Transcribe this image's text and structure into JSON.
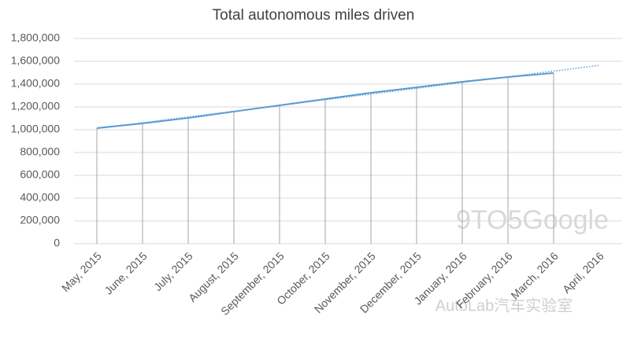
{
  "chart_data": {
    "type": "line",
    "title": "Total autonomous miles driven",
    "categories": [
      "May, 2015",
      "June, 2015",
      "July, 2015",
      "August, 2015",
      "September, 2015",
      "October, 2015",
      "November, 2015",
      "December, 2015",
      "January, 2016",
      "February, 2016",
      "March, 2016",
      "April, 2016"
    ],
    "series": [
      {
        "color": "#5b9bd5",
        "values": [
          1014000,
          1055000,
          1103000,
          1159000,
          1214000,
          1269000,
          1324000,
          1372000,
          1421000,
          1462000,
          1497000,
          null
        ]
      }
    ],
    "trendline": {
      "color": "#5b9bd5",
      "style": "dotted",
      "values": [
        1011000,
        1061000,
        1112000,
        1162000,
        1212000,
        1263000,
        1313000,
        1363000,
        1414000,
        1464000,
        1514000,
        1565000
      ]
    },
    "drop_lines": true,
    "ylim": [
      0,
      1800000
    ],
    "yticks": [
      0,
      {
        "value": 200000,
        "label": "200,000"
      },
      {
        "value": 400000,
        "label": "400,000"
      },
      {
        "value": 600000,
        "label": "600,000"
      },
      {
        "value": 800000,
        "label": "800,000"
      },
      {
        "value": 1000000,
        "label": "1,000,000"
      },
      {
        "value": 1200000,
        "label": "1,200,000"
      },
      {
        "value": 1400000,
        "label": "1,400,000"
      },
      {
        "value": 1600000,
        "label": "1,600,000"
      },
      {
        "value": 1800000,
        "label": "1,800,000"
      }
    ],
    "grid": true,
    "watermarks": [
      "9TO5Google",
      "AutoLab汽车实验室"
    ]
  }
}
